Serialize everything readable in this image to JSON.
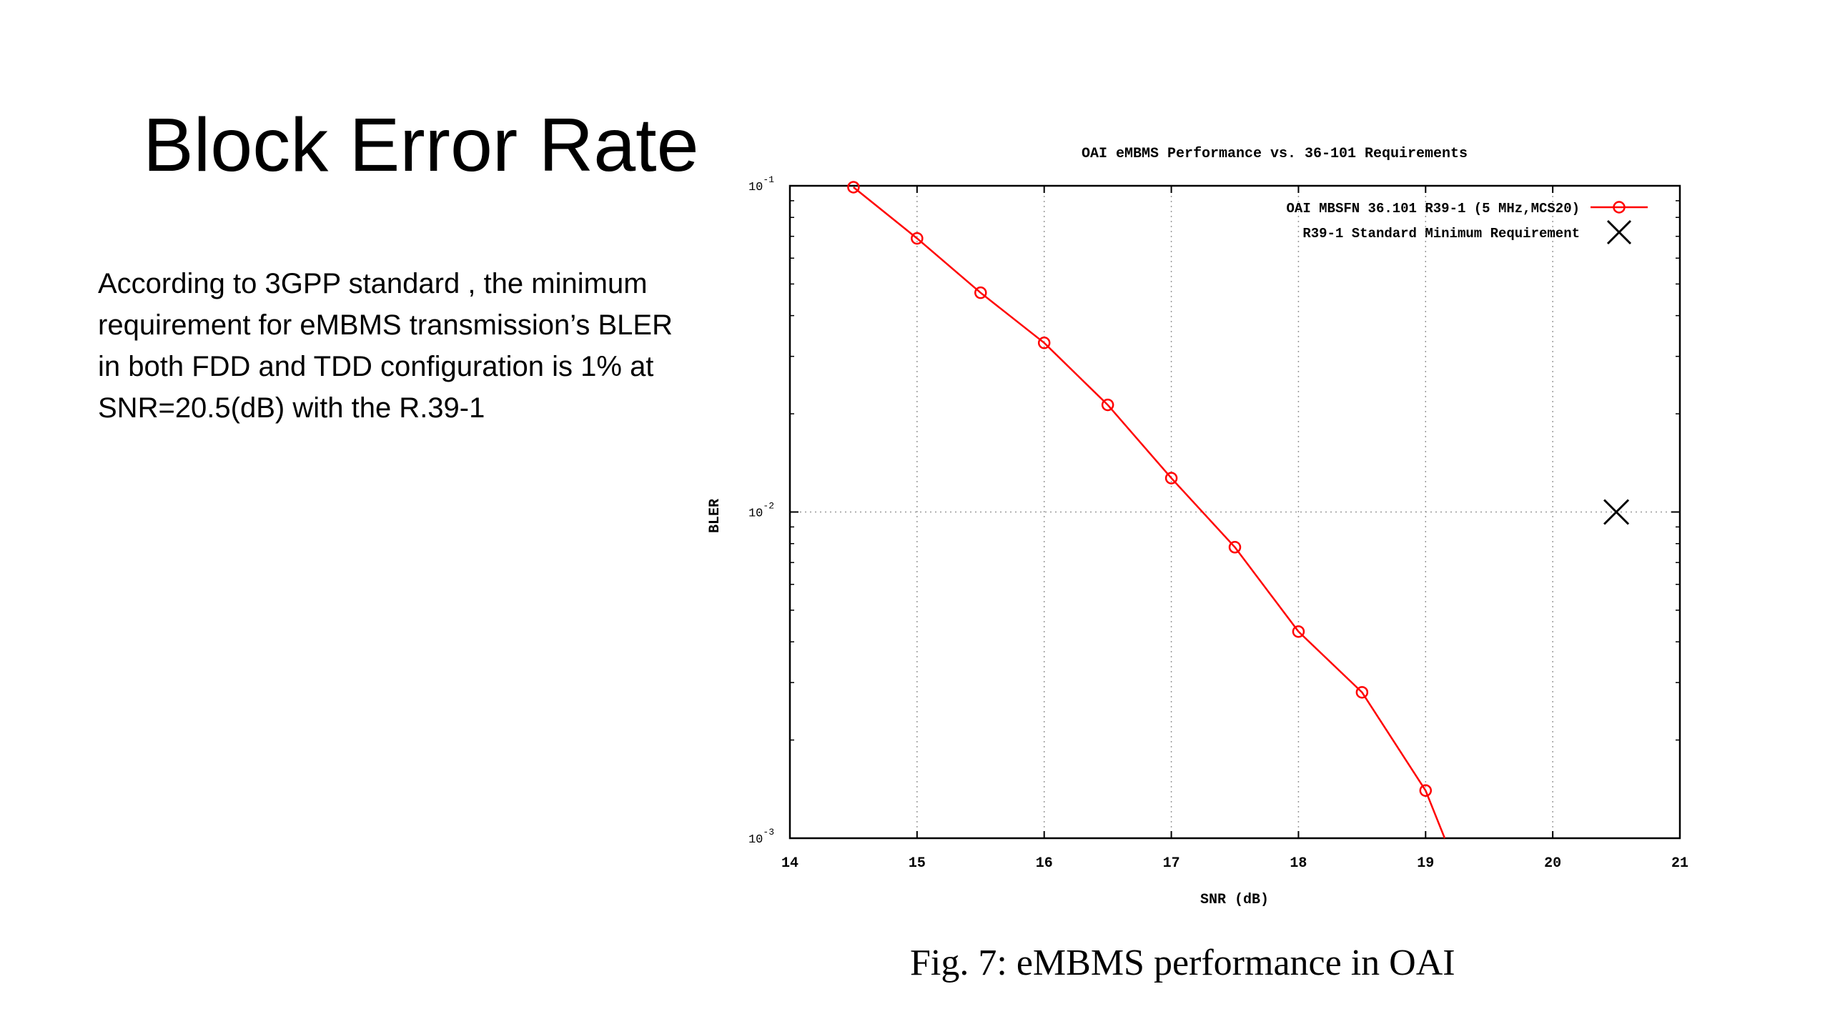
{
  "slide": {
    "title": "Block Error Rate",
    "body": "According to 3GPP standard , the minimum requirement for eMBMS transmission’s BLER in both FDD and TDD configuration is 1% at SNR=20.5(dB) with the R.39-1"
  },
  "figure": {
    "caption": "Fig. 7: eMBMS performance in OAI"
  },
  "chart_data": {
    "type": "line",
    "title": "OAI eMBMS Performance vs. 36-101 Requirements",
    "xlabel": "SNR (dB)",
    "ylabel": "BLER",
    "xlim": [
      14,
      21
    ],
    "ylim": [
      0.001,
      0.1
    ],
    "yscale": "log",
    "xticks": [
      14,
      15,
      16,
      17,
      18,
      19,
      20,
      21
    ],
    "yticks": [
      {
        "value": 0.1,
        "base": "10",
        "exp": "-1"
      },
      {
        "value": 0.01,
        "base": "10",
        "exp": "-2"
      },
      {
        "value": 0.001,
        "base": "10",
        "exp": "-3"
      }
    ],
    "grid": true,
    "legend_position": "top-right",
    "series": [
      {
        "name": "OAI MBSFN 36.101 R39-1 (5 MHz,MCS20)",
        "color": "#ff0000",
        "marker": "circle",
        "x": [
          14.5,
          15,
          15.5,
          16,
          16.5,
          17,
          17.5,
          18,
          18.5,
          19,
          19.15
        ],
        "y": [
          0.099,
          0.069,
          0.047,
          0.033,
          0.0213,
          0.0127,
          0.0078,
          0.0043,
          0.0028,
          0.0014,
          0.001
        ],
        "marked": [
          true,
          true,
          true,
          true,
          true,
          true,
          true,
          true,
          true,
          true,
          false
        ]
      },
      {
        "name": "R39-1 Standard Minimum Requirement",
        "color": "#000000",
        "marker": "x",
        "x": [
          20.5
        ],
        "y": [
          0.01
        ]
      }
    ]
  }
}
